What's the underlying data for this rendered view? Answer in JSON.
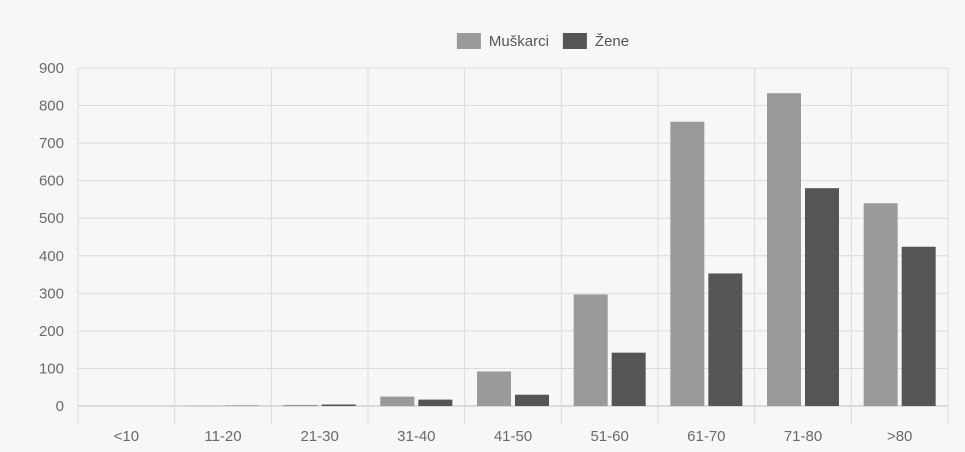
{
  "chart_data": {
    "type": "bar",
    "title": "",
    "xlabel": "",
    "ylabel": "",
    "categories": [
      "<10",
      "11-20",
      "21-30",
      "31-40",
      "41-50",
      "51-60",
      "61-70",
      "71-80",
      ">80"
    ],
    "series": [
      {
        "name": "Muškarci",
        "color": "#9a9a9a",
        "values": [
          0,
          1,
          3,
          25,
          92,
          297,
          757,
          833,
          540
        ]
      },
      {
        "name": "Žene",
        "color": "#555555",
        "values": [
          0,
          1,
          4,
          17,
          30,
          142,
          353,
          580,
          424
        ]
      }
    ],
    "ylim": [
      0,
      900
    ],
    "yticks": [
      0,
      100,
      200,
      300,
      400,
      500,
      600,
      700,
      800,
      900
    ],
    "grid": true,
    "legend_position": "top-center"
  }
}
